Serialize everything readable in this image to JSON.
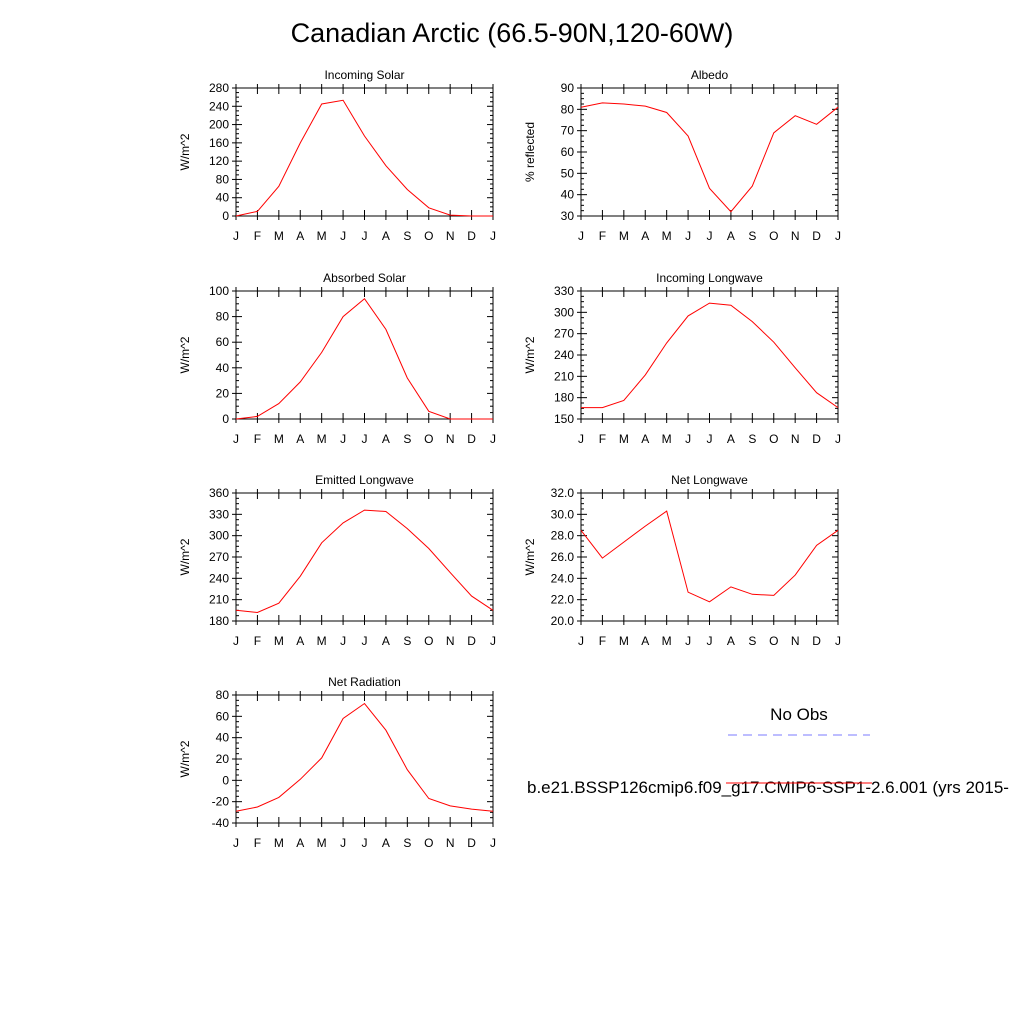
{
  "title": "Canadian Arctic (66.5-90N,120-60W)",
  "legend": {
    "obs_label": "No Obs",
    "obs_color": "#7b7bff",
    "model_label": "b.e21.BSSP126cmip6.f09_g17.CMIP6-SSP1-2.6.001 (yrs 2015-",
    "model_color": "#ff0000"
  },
  "chart_data": [
    {
      "type": "line",
      "title": "Incoming Solar",
      "ylabel": "W/m^2",
      "x": [
        "J",
        "F",
        "M",
        "A",
        "M",
        "J",
        "J",
        "A",
        "S",
        "O",
        "N",
        "D",
        "J"
      ],
      "ylim": [
        0,
        280
      ],
      "yticks": [
        "0",
        "40",
        "80",
        "120",
        "160",
        "200",
        "240",
        "280"
      ],
      "series": [
        {
          "color": "#ff0000",
          "values": [
            0,
            10,
            65,
            160,
            245,
            253,
            175,
            110,
            58,
            18,
            2,
            0,
            0
          ]
        }
      ]
    },
    {
      "type": "line",
      "title": "Albedo",
      "ylabel": "% reflected",
      "x": [
        "J",
        "F",
        "M",
        "A",
        "M",
        "J",
        "J",
        "A",
        "S",
        "O",
        "N",
        "D",
        "J"
      ],
      "ylim": [
        30,
        90
      ],
      "yticks": [
        "30",
        "40",
        "50",
        "60",
        "70",
        "80",
        "90"
      ],
      "series": [
        {
          "color": "#ff0000",
          "values": [
            81,
            83,
            82.5,
            81.5,
            78.5,
            67.5,
            43,
            32,
            44,
            69,
            77,
            73,
            81
          ]
        }
      ]
    },
    {
      "type": "line",
      "title": "Absorbed Solar",
      "ylabel": "W/m^2",
      "x": [
        "J",
        "F",
        "M",
        "A",
        "M",
        "J",
        "J",
        "A",
        "S",
        "O",
        "N",
        "D",
        "J"
      ],
      "ylim": [
        0,
        100
      ],
      "yticks": [
        "0",
        "20",
        "40",
        "60",
        "80",
        "100"
      ],
      "series": [
        {
          "color": "#ff0000",
          "values": [
            0,
            2,
            12,
            29,
            52,
            80,
            94,
            70,
            32,
            6,
            0,
            0,
            0
          ]
        }
      ]
    },
    {
      "type": "line",
      "title": "Incoming Longwave",
      "ylabel": "W/m^2",
      "x": [
        "J",
        "F",
        "M",
        "A",
        "M",
        "J",
        "J",
        "A",
        "S",
        "O",
        "N",
        "D",
        "J"
      ],
      "ylim": [
        150,
        330
      ],
      "yticks": [
        "150",
        "180",
        "210",
        "240",
        "270",
        "300",
        "330"
      ],
      "series": [
        {
          "color": "#ff0000",
          "values": [
            166,
            166,
            176,
            212,
            257,
            295,
            313,
            310,
            287,
            258,
            222,
            187,
            166
          ]
        }
      ]
    },
    {
      "type": "line",
      "title": "Emitted Longwave",
      "ylabel": "W/m^2",
      "x": [
        "J",
        "F",
        "M",
        "A",
        "M",
        "J",
        "J",
        "A",
        "S",
        "O",
        "N",
        "D",
        "J"
      ],
      "ylim": [
        180,
        360
      ],
      "yticks": [
        "180",
        "210",
        "240",
        "270",
        "300",
        "330",
        "360"
      ],
      "series": [
        {
          "color": "#ff0000",
          "values": [
            195,
            192,
            205,
            243,
            290,
            318,
            336,
            334,
            310,
            282,
            248,
            215,
            195
          ]
        }
      ]
    },
    {
      "type": "line",
      "title": "Net Longwave",
      "ylabel": "W/m^2",
      "x": [
        "J",
        "F",
        "M",
        "A",
        "M",
        "J",
        "J",
        "A",
        "S",
        "O",
        "N",
        "D",
        "J"
      ],
      "ylim": [
        20,
        32
      ],
      "yticks": [
        "20.0",
        "22.0",
        "24.0",
        "26.0",
        "28.0",
        "30.0",
        "32.0"
      ],
      "series": [
        {
          "color": "#ff0000",
          "values": [
            28.5,
            25.9,
            27.4,
            28.9,
            30.3,
            22.7,
            21.8,
            23.2,
            22.5,
            22.4,
            24.3,
            27.1,
            28.5
          ]
        }
      ]
    },
    {
      "type": "line",
      "title": "Net Radiation",
      "ylabel": "W/m^2",
      "x": [
        "J",
        "F",
        "M",
        "A",
        "M",
        "J",
        "J",
        "A",
        "S",
        "O",
        "N",
        "D",
        "J"
      ],
      "ylim": [
        -40,
        80
      ],
      "yticks": [
        "-40",
        "-20",
        "0",
        "20",
        "40",
        "60",
        "80"
      ],
      "series": [
        {
          "color": "#ff0000",
          "values": [
            -29,
            -25,
            -16,
            1,
            21,
            58,
            72,
            47,
            10,
            -17,
            -24,
            -27,
            -29
          ]
        }
      ]
    }
  ]
}
